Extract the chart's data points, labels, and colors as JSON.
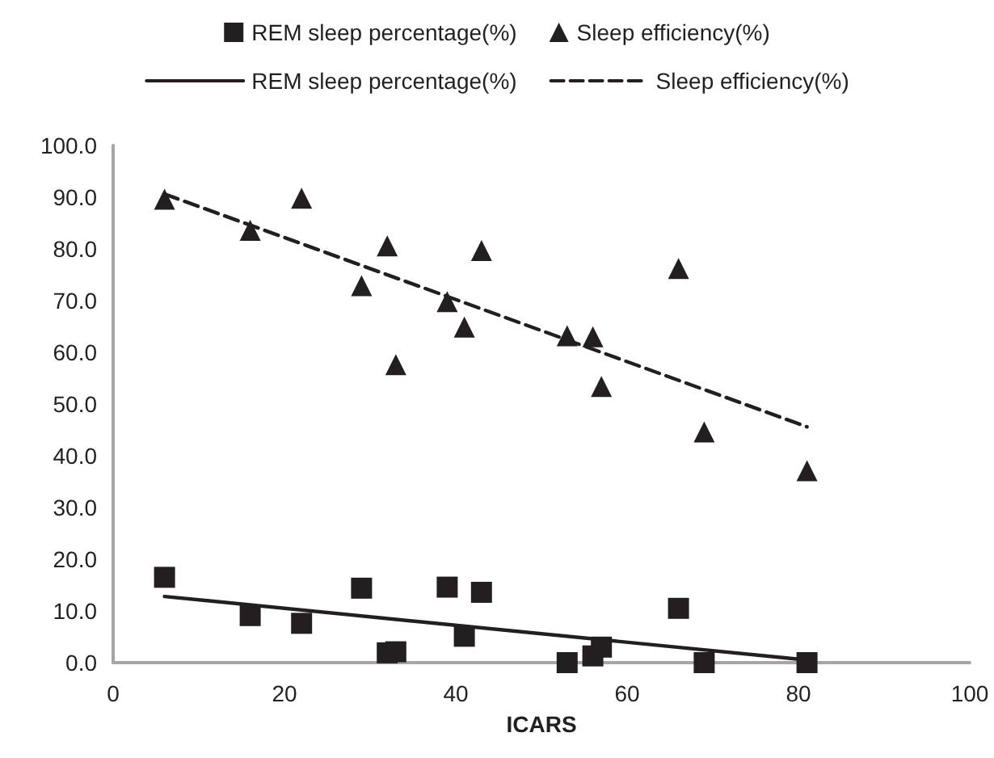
{
  "chart_data": {
    "type": "scatter",
    "xlabel": "ICARS",
    "legend": "top",
    "grid": false,
    "xlim": [
      0,
      100
    ],
    "xticks": [
      0,
      20,
      40,
      60,
      80,
      100
    ],
    "ylim": [
      0,
      100
    ],
    "yticks": [
      {
        "value": 0,
        "label": "0.0"
      },
      {
        "value": 10,
        "label": "10.0"
      },
      {
        "value": 20,
        "label": "20.0"
      },
      {
        "value": 30,
        "label": "30.0"
      },
      {
        "value": 40,
        "label": "40.0"
      },
      {
        "value": 50,
        "label": "50.0"
      },
      {
        "value": 60,
        "label": "60.0"
      },
      {
        "value": 70,
        "label": "70.0"
      },
      {
        "value": 80,
        "label": "80.0"
      },
      {
        "value": 90,
        "label": "90.0"
      },
      {
        "value": 100,
        "label": "100.0"
      }
    ],
    "series": [
      {
        "name": "REM sleep percentage(%)",
        "type": "scatter",
        "marker": "square",
        "color": "#231f20",
        "x": [
          6,
          16,
          22,
          29,
          32,
          33,
          39,
          41,
          43,
          53,
          56,
          57,
          66,
          69,
          81
        ],
        "values": [
          16.5,
          9.1,
          7.6,
          14.4,
          1.9,
          2.1,
          14.6,
          5.1,
          13.6,
          0,
          1.3,
          3.0,
          10.5,
          0,
          0
        ]
      },
      {
        "name": "Sleep efficiency(%)",
        "type": "scatter",
        "marker": "triangle",
        "color": "#231f20",
        "x": [
          6,
          16,
          22,
          29,
          32,
          33,
          39,
          41,
          43,
          53,
          56,
          57,
          66,
          69,
          81
        ],
        "values": [
          89.6,
          83.6,
          89.8,
          72.9,
          80.6,
          57.6,
          69.8,
          64.9,
          79.7,
          63.2,
          63.0,
          53.4,
          76.2,
          44.6,
          37.1
        ]
      },
      {
        "name": "REM sleep percentage(%)",
        "type": "line",
        "marker": "none",
        "line_style": "solid",
        "color": "#231f20",
        "x": [
          6,
          81
        ],
        "values": [
          12.8,
          0.5
        ]
      },
      {
        "name": "Sleep efficiency(%)",
        "type": "line",
        "marker": "none",
        "line_style": "dashed",
        "color": "#231f20",
        "x": [
          6,
          81
        ],
        "values": [
          90.6,
          45.6
        ]
      }
    ]
  }
}
